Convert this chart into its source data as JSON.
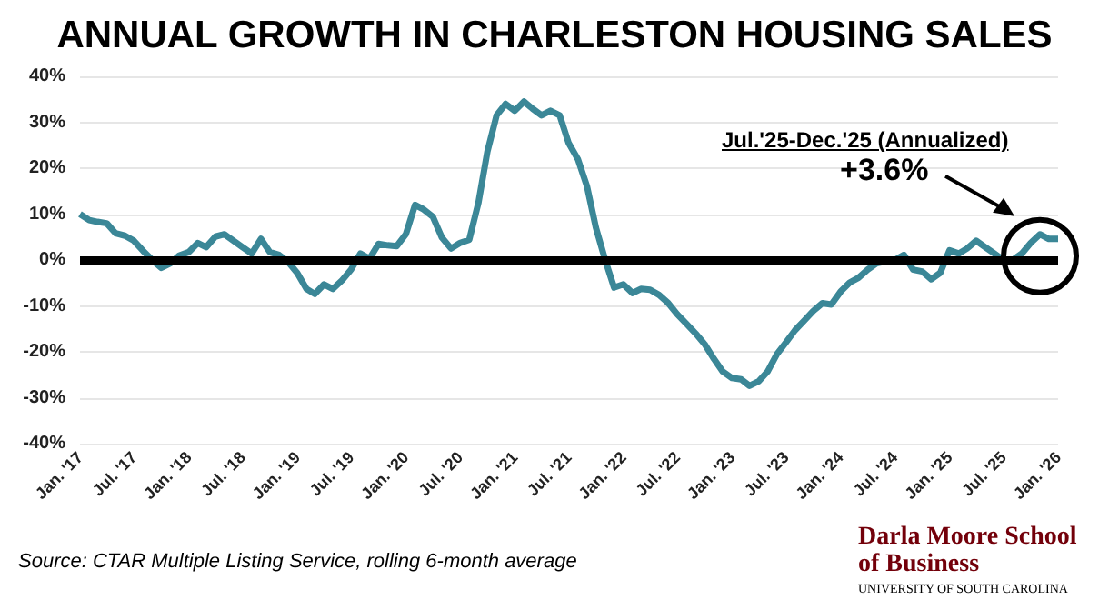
{
  "chart_data": {
    "type": "line",
    "title": "ANNUAL GROWTH IN CHARLESTON HOUSING SALES",
    "x": [
      "2017-01",
      "2017-02",
      "2017-03",
      "2017-04",
      "2017-05",
      "2017-06",
      "2017-07",
      "2017-08",
      "2017-09",
      "2017-10",
      "2017-11",
      "2017-12",
      "2018-01",
      "2018-02",
      "2018-03",
      "2018-04",
      "2018-05",
      "2018-06",
      "2018-07",
      "2018-08",
      "2018-09",
      "2018-10",
      "2018-11",
      "2018-12",
      "2019-01",
      "2019-02",
      "2019-03",
      "2019-04",
      "2019-05",
      "2019-06",
      "2019-07",
      "2019-08",
      "2019-09",
      "2019-10",
      "2019-11",
      "2019-12",
      "2020-01",
      "2020-02",
      "2020-03",
      "2020-04",
      "2020-05",
      "2020-06",
      "2020-07",
      "2020-08",
      "2020-09",
      "2020-10",
      "2020-11",
      "2020-12",
      "2021-01",
      "2021-02",
      "2021-03",
      "2021-04",
      "2021-05",
      "2021-06",
      "2021-07",
      "2021-08",
      "2021-09",
      "2021-10",
      "2021-11",
      "2021-12",
      "2022-01",
      "2022-02",
      "2022-03",
      "2022-04",
      "2022-05",
      "2022-06",
      "2022-07",
      "2022-08",
      "2022-09",
      "2022-10",
      "2022-11",
      "2022-12",
      "2023-01",
      "2023-02",
      "2023-03",
      "2023-04",
      "2023-05",
      "2023-06",
      "2023-07",
      "2023-08",
      "2023-09",
      "2023-10",
      "2023-11",
      "2023-12",
      "2024-01",
      "2024-02",
      "2024-03",
      "2024-04",
      "2024-05",
      "2024-06",
      "2024-07",
      "2024-08",
      "2024-09",
      "2024-10",
      "2024-11",
      "2024-12",
      "2025-01",
      "2025-02",
      "2025-03",
      "2025-04",
      "2025-05",
      "2025-06",
      "2025-07",
      "2025-08",
      "2025-09",
      "2025-10",
      "2025-11",
      "2025-12",
      "2026-01"
    ],
    "series": [
      {
        "color": "#3b8797",
        "values": [
          10,
          8.7,
          8.3,
          8,
          5.8,
          5.3,
          4.2,
          2,
          0,
          -1.7,
          -0.7,
          1,
          1.7,
          3.7,
          2.8,
          5.1,
          5.6,
          4.2,
          2.8,
          1.4,
          4.6,
          1.7,
          1.1,
          -0.4,
          -2.8,
          -6.3,
          -7.4,
          -5.3,
          -6.3,
          -4.4,
          -2.1,
          1.4,
          0.3,
          3.5,
          3.2,
          3,
          5.6,
          12,
          11,
          9.4,
          4.9,
          2.5,
          3.7,
          4.4,
          12.5,
          23.6,
          31.5,
          34,
          32.5,
          34.5,
          33,
          31.5,
          32.5,
          31.5,
          25.5,
          22,
          16,
          7,
          0,
          -6,
          -5.3,
          -7.2,
          -6.3,
          -6.5,
          -7.6,
          -9.4,
          -11.8,
          -13.9,
          -16,
          -18.3,
          -21.5,
          -24.3,
          -25.7,
          -26,
          -27.4,
          -26.4,
          -24.3,
          -20.5,
          -18,
          -15.3,
          -13.2,
          -11.1,
          -9.4,
          -9.7,
          -6.9,
          -4.9,
          -3.9,
          -2.1,
          -0.7,
          -0.3,
          0,
          1.1,
          -2.1,
          -2.5,
          -4.2,
          -2.8,
          2.1,
          1.4,
          2.5,
          4.2,
          2.8,
          1.4,
          0,
          0,
          1.4,
          3.7,
          5.6,
          4.6,
          4.6
        ]
      }
    ],
    "xlim": [
      "2017-01",
      "2026-01"
    ],
    "xticks": [
      {
        "value": "2017-01",
        "label": "Jan. '17"
      },
      {
        "value": "2017-07",
        "label": "Jul. '17"
      },
      {
        "value": "2018-01",
        "label": "Jan. '18"
      },
      {
        "value": "2018-07",
        "label": "Jul. '18"
      },
      {
        "value": "2019-01",
        "label": "Jan. '19"
      },
      {
        "value": "2019-07",
        "label": "Jul. '19"
      },
      {
        "value": "2020-01",
        "label": "Jan. '20"
      },
      {
        "value": "2020-07",
        "label": "Jul. '20"
      },
      {
        "value": "2021-01",
        "label": "Jan. '21"
      },
      {
        "value": "2021-07",
        "label": "Jul. '21"
      },
      {
        "value": "2022-01",
        "label": "Jan. '22"
      },
      {
        "value": "2022-07",
        "label": "Jul. '22"
      },
      {
        "value": "2023-01",
        "label": "Jan. '23"
      },
      {
        "value": "2023-07",
        "label": "Jul. '23"
      },
      {
        "value": "2024-01",
        "label": "Jan. '24"
      },
      {
        "value": "2024-07",
        "label": "Jul. '24"
      },
      {
        "value": "2025-01",
        "label": "Jan. '25"
      },
      {
        "value": "2025-07",
        "label": "Jul. '25"
      },
      {
        "value": "2026-01",
        "label": "Jan. '26"
      }
    ],
    "ylim": [
      -40,
      40
    ],
    "yticks": [
      {
        "value": -40,
        "label": "-40%"
      },
      {
        "value": -30,
        "label": "-30%"
      },
      {
        "value": -20,
        "label": "-20%"
      },
      {
        "value": -10,
        "label": "-10%"
      },
      {
        "value": 0,
        "label": "0%"
      },
      {
        "value": 10,
        "label": "10%"
      },
      {
        "value": 20,
        "label": "20%"
      },
      {
        "value": 30,
        "label": "30%"
      },
      {
        "value": 40,
        "label": "40%"
      }
    ],
    "grid": "y",
    "marker": "none",
    "line_style": "solid",
    "ref_lines": [
      {
        "axis": "y",
        "value": 0,
        "color": "#000000"
      }
    ],
    "annotations": [
      "Jul.'25-Dec.'25 (Annualized)",
      "+3.6%",
      "Source: CTAR Multiple Listing Service, rolling 6-month average",
      "Darla Moore School of Business",
      "UNIVERSITY OF SOUTH CAROLINA"
    ]
  }
}
